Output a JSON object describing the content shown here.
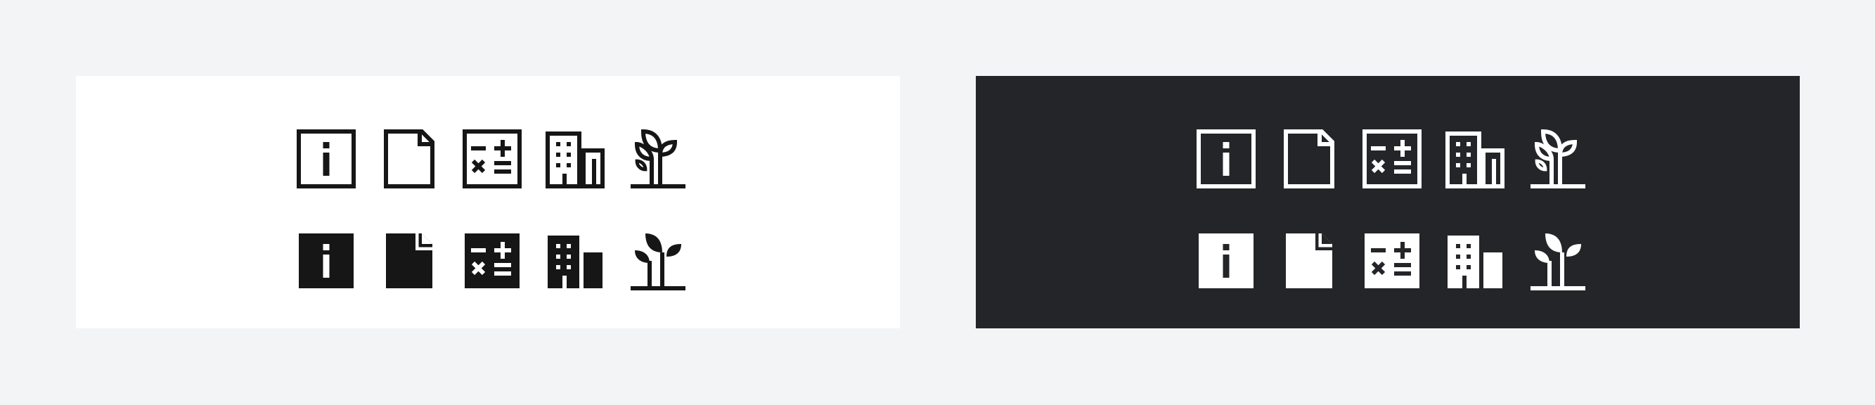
{
  "colors": {
    "page_background": "#f3f4f6",
    "light_panel_background": "#ffffff",
    "light_panel_icon": "#161616",
    "dark_panel_background": "#242528",
    "dark_panel_icon": "#ffffff"
  },
  "panels": [
    {
      "theme": "light",
      "rows": [
        {
          "style": "outline",
          "icons": [
            "information-icon",
            "document-icon",
            "calculator-icon",
            "building-icon",
            "sprout-icon"
          ]
        },
        {
          "style": "filled",
          "icons": [
            "information-filled-icon",
            "document-filled-icon",
            "calculator-filled-icon",
            "building-filled-icon",
            "sprout-filled-icon"
          ]
        }
      ]
    },
    {
      "theme": "dark",
      "rows": [
        {
          "style": "outline",
          "icons": [
            "information-icon",
            "document-icon",
            "calculator-icon",
            "building-icon",
            "sprout-icon"
          ]
        },
        {
          "style": "filled",
          "icons": [
            "information-filled-icon",
            "document-filled-icon",
            "calculator-filled-icon",
            "building-filled-icon",
            "sprout-filled-icon"
          ]
        }
      ]
    }
  ]
}
